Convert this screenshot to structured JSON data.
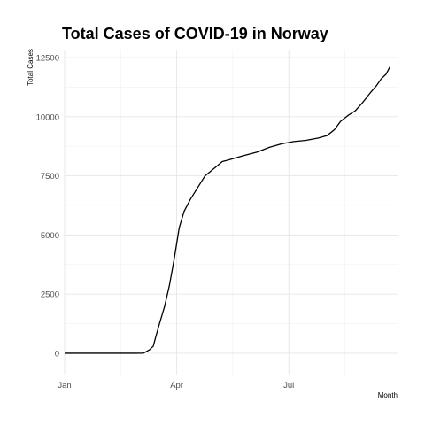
{
  "chart_data": {
    "type": "line",
    "title": "Total Cases of COVID-19 in Norway",
    "xlabel": "Month",
    "ylabel": "Total Cases",
    "grid": true,
    "ylim": [
      -900,
      12800
    ],
    "xlim": [
      "2020-01-01",
      "2020-09-28"
    ],
    "x_ticks": [
      {
        "value": "2020-01-01",
        "label": "Jan"
      },
      {
        "value": "2020-04-01",
        "label": "Apr"
      },
      {
        "value": "2020-07-01",
        "label": "Jul"
      }
    ],
    "y_ticks": [
      {
        "value": 0,
        "label": "0"
      },
      {
        "value": 2500,
        "label": "2500"
      },
      {
        "value": 5000,
        "label": "5000"
      },
      {
        "value": 7500,
        "label": "7500"
      },
      {
        "value": 10000,
        "label": "10000"
      },
      {
        "value": 12500,
        "label": "12500"
      }
    ],
    "series": [
      {
        "x": [
          "2020-01-01",
          "2020-02-01",
          "2020-02-26",
          "2020-03-05",
          "2020-03-10",
          "2020-03-13",
          "2020-03-15",
          "2020-03-18",
          "2020-03-22",
          "2020-03-26",
          "2020-03-30",
          "2020-04-03",
          "2020-04-07",
          "2020-04-12",
          "2020-04-18",
          "2020-04-24",
          "2020-05-01",
          "2020-05-08",
          "2020-05-15",
          "2020-05-25",
          "2020-06-05",
          "2020-06-15",
          "2020-06-25",
          "2020-07-05",
          "2020-07-15",
          "2020-07-25",
          "2020-08-01",
          "2020-08-07",
          "2020-08-12",
          "2020-08-18",
          "2020-08-24",
          "2020-08-30",
          "2020-09-05",
          "2020-09-10",
          "2020-09-14",
          "2020-09-18",
          "2020-09-21"
        ],
        "y": [
          0,
          0,
          0,
          5,
          150,
          300,
          700,
          1250,
          1950,
          2850,
          4000,
          5300,
          6000,
          6500,
          7000,
          7500,
          7800,
          8100,
          8200,
          8350,
          8500,
          8700,
          8850,
          8950,
          9000,
          9100,
          9200,
          9450,
          9800,
          10050,
          10250,
          10600,
          11000,
          11300,
          11600,
          11800,
          12100
        ]
      }
    ]
  }
}
